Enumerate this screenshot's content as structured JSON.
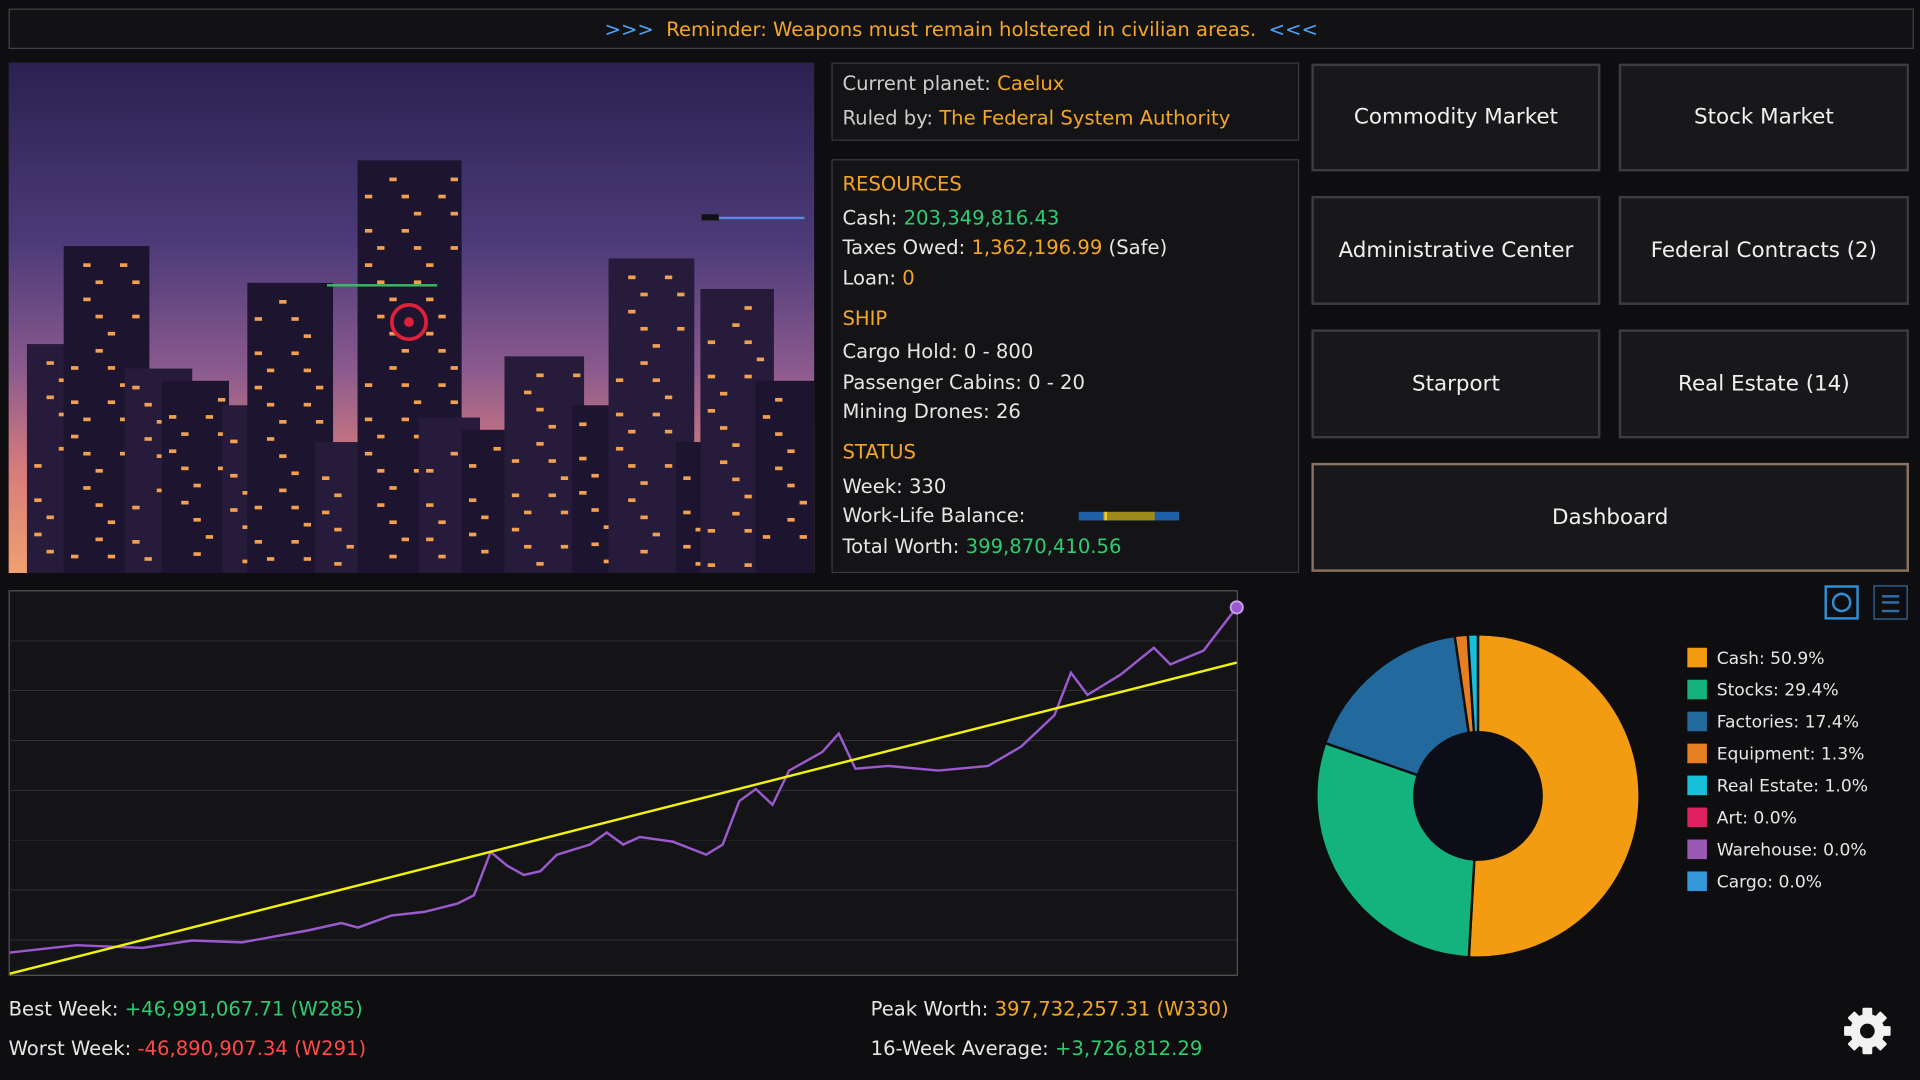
{
  "banner": {
    "left": ">>>",
    "text": "Reminder: Weapons must remain holstered in civilian areas.",
    "right": "<<<"
  },
  "planet": {
    "label": "Current planet:",
    "value": "Caelux",
    "ruler_label": "Ruled by:",
    "ruler": "The Federal System Authority"
  },
  "resources": {
    "heading": "RESOURCES",
    "cash_label": "Cash:",
    "cash": "203,349,816.43",
    "taxes_label": "Taxes Owed:",
    "taxes": "1,362,196.99",
    "taxes_note": "(Safe)",
    "loan_label": "Loan:",
    "loan": "0"
  },
  "ship": {
    "heading": "SHIP",
    "cargo": "Cargo Hold: 0 - 800",
    "cabins": "Passenger Cabins: 0 - 20",
    "drones": "Mining Drones: 26"
  },
  "status": {
    "heading": "STATUS",
    "week": "Week: 330",
    "balance_label": "Work-Life Balance:",
    "worth_label": "Total Worth:",
    "worth": "399,870,410.56"
  },
  "buttons": [
    "Commodity Market",
    "Stock Market",
    "Administrative Center",
    "Federal Contracts (2)",
    "Starport",
    "Real Estate (14)",
    "Dashboard"
  ],
  "stats": {
    "best_label": "Best Week:",
    "best": "+46,991,067.71 (W285)",
    "worst_label": "Worst Week:",
    "worst": "-46,890,907.34 (W291)",
    "peak_label": "Peak Worth:",
    "peak": "397,732,257.31 (W330)",
    "avg_label": "16-Week Average:",
    "avg": "+3,726,812.29"
  },
  "chart_data": [
    {
      "type": "line",
      "xlim": [
        256,
        330
      ],
      "ylim": [
        0,
        415000000
      ],
      "series": [
        {
          "color": "#9b59d0",
          "end_marker": true,
          "x": [
            256,
            260,
            264,
            267,
            270,
            274,
            276,
            277,
            279,
            281,
            283,
            284,
            285,
            286,
            287,
            288,
            289,
            291,
            292,
            293,
            294,
            296,
            298,
            299,
            300,
            301,
            302,
            303,
            305,
            306,
            307,
            309,
            312,
            315,
            317,
            319,
            320,
            321,
            323,
            325,
            326,
            328,
            330
          ],
          "values": [
            24000000,
            32000000,
            29000000,
            37000000,
            35000000,
            48000000,
            56000000,
            51000000,
            64000000,
            68000000,
            77000000,
            86000000,
            133000000,
            118000000,
            108000000,
            112000000,
            130000000,
            141000000,
            154000000,
            141000000,
            149000000,
            144000000,
            130000000,
            141000000,
            188000000,
            201000000,
            184000000,
            221000000,
            241000000,
            261000000,
            223000000,
            226000000,
            221000000,
            226000000,
            247000000,
            281000000,
            327000000,
            303000000,
            325000000,
            354000000,
            336000000,
            351000000,
            397700000
          ]
        },
        {
          "color": "#f2f20a",
          "x": [
            256,
            330
          ],
          "values": [
            1000000,
            338000000
          ]
        }
      ]
    },
    {
      "type": "donut",
      "labels": [
        "Cash: 50.9%",
        "Stocks: 29.4%",
        "Factories: 17.4%",
        "Equipment: 1.3%",
        "Real Estate: 1.0%",
        "Art: 0.0%",
        "Warehouse: 0.0%",
        "Cargo: 0.0%"
      ],
      "values": [
        50.9,
        29.4,
        17.4,
        1.3,
        1.0,
        0.0,
        0.0,
        0.0
      ],
      "colors": [
        "#f39c12",
        "#14b37d",
        "#22699e",
        "#e67e22",
        "#17c0d8",
        "#e0215f",
        "#9b59b6",
        "#3498db"
      ]
    }
  ]
}
